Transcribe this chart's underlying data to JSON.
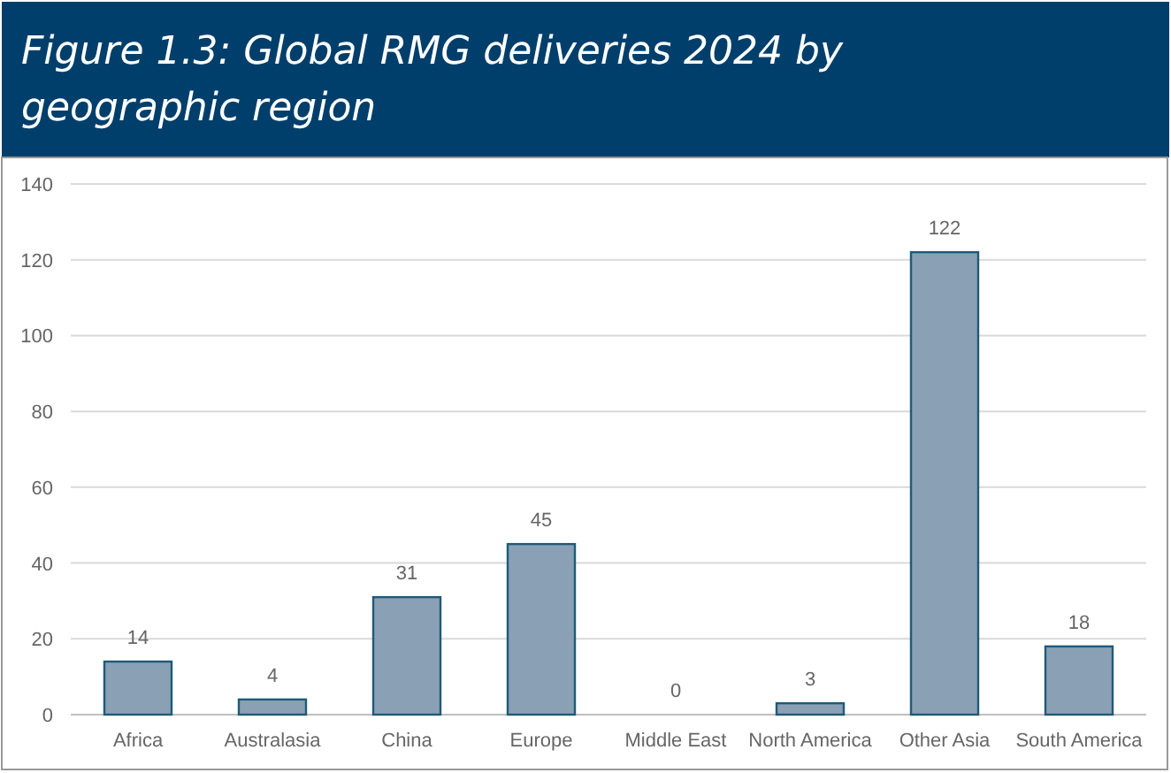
{
  "chart_data": {
    "type": "bar",
    "title": "Figure 1.3: Global RMG deliveries 2024 by geographic region",
    "categories": [
      "Africa",
      "Australasia",
      "China",
      "Europe",
      "Middle East",
      "North America",
      "Other Asia",
      "South America"
    ],
    "values": [
      14,
      4,
      31,
      45,
      0,
      3,
      122,
      18
    ],
    "color": "#8aa0b4",
    "ylim": [
      0,
      140
    ],
    "yticks": [
      0,
      20,
      40,
      60,
      80,
      100,
      120,
      140
    ],
    "grid": "y",
    "data_labels": true
  }
}
